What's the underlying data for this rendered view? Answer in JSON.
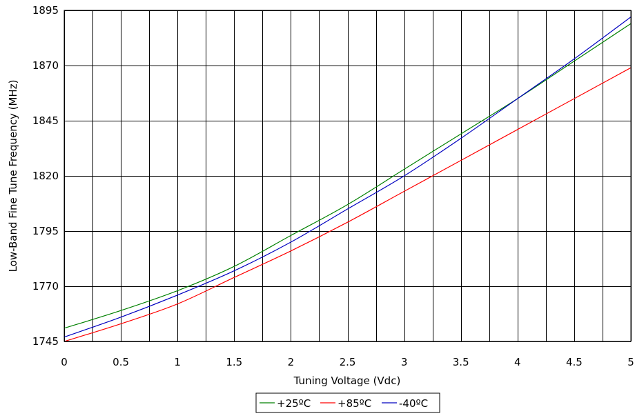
{
  "chart_data": {
    "type": "line",
    "title": "",
    "xlabel": "Tuning Voltage (Vdc)",
    "ylabel": "Low-Band Fine Tune Frequency (MHz)",
    "xlim": [
      0,
      5
    ],
    "ylim": [
      1745,
      1895
    ],
    "xticks": [
      0,
      0.5,
      1,
      1.5,
      2,
      2.5,
      3,
      3.5,
      4,
      4.5,
      5
    ],
    "xtick_labels": [
      "0",
      "0.5",
      "1",
      "1.5",
      "2",
      "2.5",
      "3",
      "3.5",
      "4",
      "4.5",
      "5"
    ],
    "xgrid_step": 0.25,
    "yticks": [
      1745,
      1770,
      1795,
      1820,
      1845,
      1870,
      1895
    ],
    "ytick_labels": [
      "1745",
      "1770",
      "1795",
      "1820",
      "1845",
      "1870",
      "1895"
    ],
    "grid": true,
    "legend_position": "bottom-center",
    "x": [
      0,
      0.5,
      1,
      1.5,
      2,
      2.5,
      3,
      3.5,
      4,
      4.5,
      5
    ],
    "series": [
      {
        "name": "+25ºC",
        "color": "#008000",
        "values": [
          1751,
          1759,
          1768,
          1779,
          1793,
          1807,
          1823,
          1839,
          1855,
          1872,
          1889
        ]
      },
      {
        "name": "+85ºC",
        "color": "#ff0000",
        "values": [
          1745,
          1753,
          1762,
          1774,
          1786,
          1799,
          1813,
          1827,
          1841,
          1855,
          1869
        ]
      },
      {
        "name": "-40ºC",
        "color": "#0000c0",
        "values": [
          1747,
          1756,
          1766,
          1777,
          1790,
          1805,
          1820,
          1837,
          1855,
          1873,
          1892
        ]
      }
    ]
  }
}
